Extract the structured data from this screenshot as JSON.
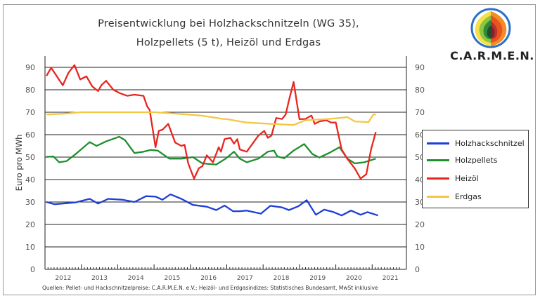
{
  "chart_data": {
    "type": "line",
    "title_line1": "Preisentwicklung bei Holzhackschnitzeln (WG 35),",
    "title_line2": "Holzpellets (5 t), Heizöl und Erdgas",
    "ylabel": "Euro pro MWh",
    "xlabel": "",
    "ylim": [
      0,
      90
    ],
    "yticks": [
      0,
      10,
      20,
      30,
      40,
      50,
      60,
      70,
      80,
      90
    ],
    "xlim": [
      2012,
      2021.75
    ],
    "xtick_labels": [
      "2012",
      "2013",
      "2014",
      "2015",
      "2016",
      "2017",
      "2018",
      "2019",
      "2020",
      "2021"
    ],
    "grid": true,
    "legend_placement": "right",
    "source": "Quellen: Pellet- und Hackschnitzelpreise: C.A.R.M.E.N. e.V.; Heizöl- und Erdgasindizes: Statistisches Bundesamt, MwSt inklusive",
    "series": [
      {
        "name": "Holzhackschnitzel",
        "color": "#1f3fd6",
        "points": [
          [
            2012.04,
            30
          ],
          [
            2012.26,
            29
          ],
          [
            2012.84,
            29.8
          ],
          [
            2013.23,
            31.4
          ],
          [
            2013.46,
            29.3
          ],
          [
            2013.74,
            31.4
          ],
          [
            2014.13,
            31
          ],
          [
            2014.46,
            30
          ],
          [
            2014.78,
            32.6
          ],
          [
            2015.04,
            32.4
          ],
          [
            2015.23,
            31
          ],
          [
            2015.45,
            33.4
          ],
          [
            2015.75,
            31.4
          ],
          [
            2016.07,
            28.7
          ],
          [
            2016.45,
            27.9
          ],
          [
            2016.71,
            26.4
          ],
          [
            2016.94,
            28.4
          ],
          [
            2017.17,
            25.9
          ],
          [
            2017.36,
            25.9
          ],
          [
            2017.55,
            26.2
          ],
          [
            2017.94,
            24.8
          ],
          [
            2018.2,
            28.3
          ],
          [
            2018.52,
            27.6
          ],
          [
            2018.71,
            26.4
          ],
          [
            2018.97,
            28.1
          ],
          [
            2019.2,
            30.8
          ],
          [
            2019.45,
            24.3
          ],
          [
            2019.68,
            26.6
          ],
          [
            2019.94,
            25.5
          ],
          [
            2020.16,
            24
          ],
          [
            2020.42,
            26.2
          ],
          [
            2020.68,
            24.3
          ],
          [
            2020.87,
            25.5
          ],
          [
            2021.16,
            24
          ]
        ]
      },
      {
        "name": "Holzpellets",
        "color": "#1e8f2e",
        "points": [
          [
            2012.04,
            50.1
          ],
          [
            2012.23,
            50.3
          ],
          [
            2012.39,
            47.7
          ],
          [
            2012.59,
            48.2
          ],
          [
            2012.84,
            51.3
          ],
          [
            2013.23,
            56.7
          ],
          [
            2013.42,
            55
          ],
          [
            2013.68,
            57
          ],
          [
            2014.04,
            59.1
          ],
          [
            2014.2,
            57.6
          ],
          [
            2014.46,
            51.8
          ],
          [
            2014.71,
            52.4
          ],
          [
            2014.91,
            53.2
          ],
          [
            2015.1,
            52.9
          ],
          [
            2015.42,
            49.3
          ],
          [
            2015.75,
            49.3
          ],
          [
            2016.07,
            50
          ],
          [
            2016.33,
            47.2
          ],
          [
            2016.71,
            46.7
          ],
          [
            2016.97,
            49.3
          ],
          [
            2017.2,
            52.4
          ],
          [
            2017.36,
            49.3
          ],
          [
            2017.55,
            47.7
          ],
          [
            2017.87,
            49.3
          ],
          [
            2018.13,
            52.4
          ],
          [
            2018.3,
            52.9
          ],
          [
            2018.39,
            50.3
          ],
          [
            2018.58,
            49.5
          ],
          [
            2018.84,
            52.9
          ],
          [
            2019.13,
            55.8
          ],
          [
            2019.36,
            51.3
          ],
          [
            2019.55,
            49.8
          ],
          [
            2019.81,
            51.8
          ],
          [
            2020.1,
            54.4
          ],
          [
            2020.32,
            49.3
          ],
          [
            2020.52,
            47.2
          ],
          [
            2020.78,
            47.7
          ],
          [
            2021.1,
            49.3
          ]
        ]
      },
      {
        "name": "Heizöl",
        "color": "#e8261f",
        "points": [
          [
            2012.04,
            86.2
          ],
          [
            2012.17,
            89.8
          ],
          [
            2012.49,
            82
          ],
          [
            2012.65,
            87.7
          ],
          [
            2012.81,
            91
          ],
          [
            2012.97,
            84.6
          ],
          [
            2013.14,
            86
          ],
          [
            2013.3,
            81.5
          ],
          [
            2013.46,
            79.4
          ],
          [
            2013.55,
            82
          ],
          [
            2013.68,
            84
          ],
          [
            2013.88,
            80
          ],
          [
            2014.07,
            78.4
          ],
          [
            2014.26,
            77.3
          ],
          [
            2014.46,
            77.8
          ],
          [
            2014.71,
            77.3
          ],
          [
            2014.81,
            72.6
          ],
          [
            2014.88,
            71
          ],
          [
            2015.04,
            54.4
          ],
          [
            2015.13,
            61.7
          ],
          [
            2015.23,
            62.2
          ],
          [
            2015.39,
            64.8
          ],
          [
            2015.58,
            56.5
          ],
          [
            2015.75,
            55
          ],
          [
            2015.84,
            55.5
          ],
          [
            2015.94,
            47.2
          ],
          [
            2016.1,
            40.4
          ],
          [
            2016.23,
            45
          ],
          [
            2016.33,
            46
          ],
          [
            2016.45,
            50.8
          ],
          [
            2016.62,
            47.7
          ],
          [
            2016.78,
            54.4
          ],
          [
            2016.84,
            52.4
          ],
          [
            2016.94,
            58
          ],
          [
            2017.1,
            58.6
          ],
          [
            2017.2,
            56
          ],
          [
            2017.29,
            58
          ],
          [
            2017.36,
            53.4
          ],
          [
            2017.55,
            52.4
          ],
          [
            2017.87,
            59.6
          ],
          [
            2018.03,
            61.7
          ],
          [
            2018.13,
            58.6
          ],
          [
            2018.23,
            59.6
          ],
          [
            2018.36,
            67.4
          ],
          [
            2018.52,
            67
          ],
          [
            2018.62,
            69
          ],
          [
            2018.71,
            75.2
          ],
          [
            2018.84,
            83.5
          ],
          [
            2019.0,
            66.9
          ],
          [
            2019.16,
            67
          ],
          [
            2019.33,
            68.5
          ],
          [
            2019.42,
            64.8
          ],
          [
            2019.55,
            65.9
          ],
          [
            2019.74,
            66.4
          ],
          [
            2019.87,
            65.4
          ],
          [
            2020.0,
            65.4
          ],
          [
            2020.16,
            53.4
          ],
          [
            2020.32,
            49.2
          ],
          [
            2020.52,
            45
          ],
          [
            2020.68,
            40.4
          ],
          [
            2020.84,
            42.4
          ],
          [
            2020.97,
            53.4
          ],
          [
            2021.1,
            61.2
          ]
        ]
      },
      {
        "name": "Erdgas",
        "color": "#f2c744",
        "points": [
          [
            2012.04,
            69
          ],
          [
            2012.5,
            69.3
          ],
          [
            2013.0,
            70
          ],
          [
            2014.0,
            70
          ],
          [
            2015.0,
            70
          ],
          [
            2015.5,
            69.5
          ],
          [
            2016.3,
            68.5
          ],
          [
            2016.9,
            67
          ],
          [
            2017.0,
            66.9
          ],
          [
            2017.55,
            65.4
          ],
          [
            2018.2,
            64.8
          ],
          [
            2018.84,
            64.3
          ],
          [
            2019.16,
            66.4
          ],
          [
            2019.8,
            67
          ],
          [
            2020.32,
            67.8
          ],
          [
            2020.52,
            65.9
          ],
          [
            2020.9,
            65.6
          ],
          [
            2021.03,
            69
          ],
          [
            2021.1,
            69
          ]
        ]
      }
    ]
  },
  "logo": {
    "text": "C.A.R.M.E.N."
  }
}
